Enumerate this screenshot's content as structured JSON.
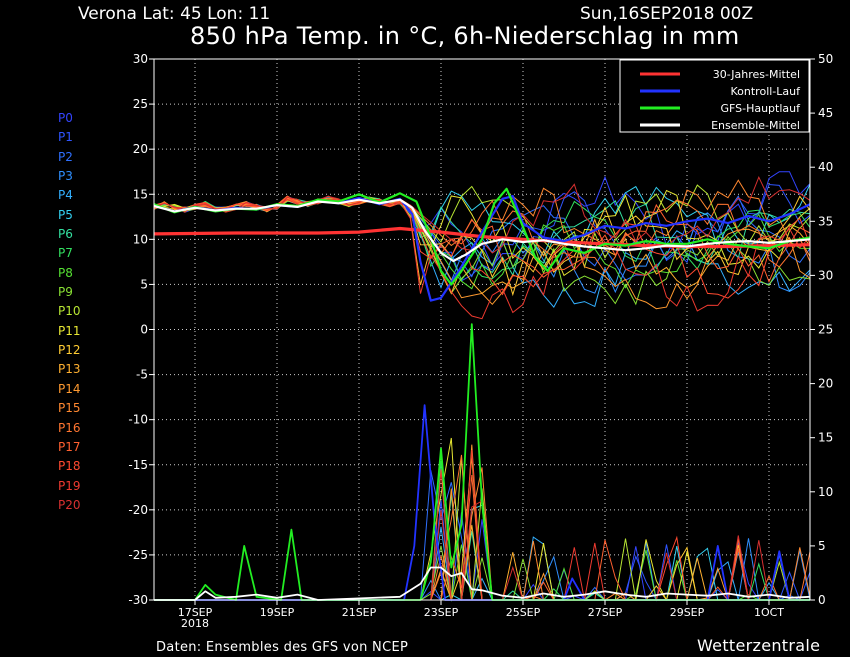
{
  "header": {
    "location": "Verona   Lat: 45 Lon: 11",
    "datetime": "Sun,16SEP2018 00Z",
    "title": "850 hPa Temp. in °C, 6h-Niederschlag in mm"
  },
  "footer": {
    "source": "Daten: Ensembles des GFS von NCEP",
    "brand": "Wetterzentrale"
  },
  "members": [
    {
      "label": "P0",
      "color": "#3344ff"
    },
    {
      "label": "P1",
      "color": "#2f55ff"
    },
    {
      "label": "P2",
      "color": "#2f70ff"
    },
    {
      "label": "P3",
      "color": "#2f8fff"
    },
    {
      "label": "P4",
      "color": "#33b0ff"
    },
    {
      "label": "P5",
      "color": "#33d0f0"
    },
    {
      "label": "P6",
      "color": "#33e0a0"
    },
    {
      "label": "P7",
      "color": "#33e060"
    },
    {
      "label": "P8",
      "color": "#55e033"
    },
    {
      "label": "P9",
      "color": "#88e033"
    },
    {
      "label": "P10",
      "color": "#b8e633"
    },
    {
      "label": "P11",
      "color": "#e8e833"
    },
    {
      "label": "P12",
      "color": "#ffcc33"
    },
    {
      "label": "P13",
      "color": "#ffb030"
    },
    {
      "label": "P14",
      "color": "#ff9a30"
    },
    {
      "label": "P15",
      "color": "#ff8830"
    },
    {
      "label": "P16",
      "color": "#ff7530"
    },
    {
      "label": "P17",
      "color": "#ff6030"
    },
    {
      "label": "P18",
      "color": "#ff4a30"
    },
    {
      "label": "P19",
      "color": "#ee3a30"
    },
    {
      "label": "P20",
      "color": "#d83030"
    }
  ],
  "chart_data": {
    "type": "line",
    "x_ticks": [
      {
        "label": "17SEP",
        "sub": "2018",
        "day": 1
      },
      {
        "label": "19SEP",
        "sub": "",
        "day": 3
      },
      {
        "label": "21SEP",
        "sub": "",
        "day": 5
      },
      {
        "label": "23SEP",
        "sub": "",
        "day": 7
      },
      {
        "label": "25SEP",
        "sub": "",
        "day": 9
      },
      {
        "label": "27SEP",
        "sub": "",
        "day": 11
      },
      {
        "label": "29SEP",
        "sub": "",
        "day": 13
      },
      {
        "label": "1OCT",
        "sub": "",
        "day": 15
      }
    ],
    "xlim": [
      0,
      16
    ],
    "y_left": {
      "label": "850 hPa Temp. (°C)",
      "ticks": [
        30,
        25,
        20,
        15,
        10,
        5,
        0,
        -5,
        -10,
        -15,
        -20,
        -25,
        -30
      ],
      "ylim": [
        -30,
        30
      ]
    },
    "y_right": {
      "label": "6h-Niederschlag (mm)",
      "ticks": [
        50,
        45,
        40,
        35,
        30,
        25,
        20,
        15,
        10,
        5,
        0
      ],
      "ylim": [
        0,
        50
      ]
    },
    "grid": true,
    "legend_position": "top-right",
    "series": [
      {
        "name": "30-Jahres-Mittel",
        "color": "#ff3333",
        "width": 3.2,
        "axis": "left",
        "points": [
          [
            0,
            10.6
          ],
          [
            2,
            10.7
          ],
          [
            4,
            10.7
          ],
          [
            5,
            10.8
          ],
          [
            6,
            11.2
          ],
          [
            7,
            10.8
          ],
          [
            8,
            10.3
          ],
          [
            9,
            10.0
          ],
          [
            10,
            9.7
          ],
          [
            11,
            9.5
          ],
          [
            12,
            9.3
          ],
          [
            13,
            9.2
          ],
          [
            14,
            9.2
          ],
          [
            15,
            9.3
          ],
          [
            16,
            9.4
          ]
        ]
      },
      {
        "name": "Kontroll-Lauf",
        "color": "#2233ff",
        "width": 2.2,
        "axis": "left",
        "points": [
          [
            0,
            13.8
          ],
          [
            0.5,
            13.1
          ],
          [
            1,
            13.6
          ],
          [
            1.5,
            13.2
          ],
          [
            2,
            13.5
          ],
          [
            2.5,
            13.3
          ],
          [
            3,
            13.8
          ],
          [
            3.5,
            13.6
          ],
          [
            4,
            14.3
          ],
          [
            4.5,
            14.0
          ],
          [
            5,
            14.6
          ],
          [
            5.5,
            13.9
          ],
          [
            6,
            14.5
          ],
          [
            6.3,
            12.8
          ],
          [
            6.5,
            7.5
          ],
          [
            6.75,
            3.2
          ],
          [
            7,
            3.5
          ],
          [
            7.25,
            5.2
          ],
          [
            7.5,
            7.0
          ],
          [
            8,
            10.8
          ],
          [
            8.5,
            14.5
          ],
          [
            8.75,
            14.8
          ],
          [
            9,
            11.8
          ],
          [
            9.5,
            10.2
          ],
          [
            10,
            9.8
          ],
          [
            10.5,
            10.5
          ],
          [
            11,
            11.5
          ],
          [
            11.5,
            11.2
          ],
          [
            12,
            11.8
          ],
          [
            12.5,
            11.5
          ],
          [
            13,
            12.0
          ],
          [
            13.5,
            12.3
          ],
          [
            14,
            11.8
          ],
          [
            14.5,
            12.6
          ],
          [
            15,
            12.0
          ],
          [
            15.5,
            12.8
          ],
          [
            16,
            13.9
          ]
        ]
      },
      {
        "name": "GFS-Hauptlauf",
        "color": "#22ee22",
        "width": 2.2,
        "axis": "left",
        "points": [
          [
            0,
            13.9
          ],
          [
            0.5,
            13.0
          ],
          [
            1,
            13.6
          ],
          [
            1.5,
            13.1
          ],
          [
            2,
            13.4
          ],
          [
            2.5,
            13.3
          ],
          [
            3,
            13.9
          ],
          [
            3.5,
            13.7
          ],
          [
            4,
            14.4
          ],
          [
            4.5,
            14.2
          ],
          [
            5,
            15.0
          ],
          [
            5.5,
            14.1
          ],
          [
            6,
            15.1
          ],
          [
            6.4,
            14.2
          ],
          [
            6.75,
            10.2
          ],
          [
            7,
            6.5
          ],
          [
            7.25,
            5.0
          ],
          [
            7.5,
            6.5
          ],
          [
            8,
            10.0
          ],
          [
            8.3,
            14.0
          ],
          [
            8.6,
            15.6
          ],
          [
            8.9,
            12.5
          ],
          [
            9.3,
            8.0
          ],
          [
            9.6,
            6.5
          ],
          [
            10,
            9.0
          ],
          [
            10.5,
            8.5
          ],
          [
            11,
            9.5
          ],
          [
            11.5,
            9.3
          ],
          [
            12,
            9.8
          ],
          [
            12.5,
            9.5
          ],
          [
            13,
            9.5
          ],
          [
            13.5,
            10.0
          ],
          [
            14,
            9.5
          ],
          [
            14.5,
            9.2
          ],
          [
            15,
            9.0
          ],
          [
            15.5,
            9.8
          ],
          [
            16,
            10.2
          ]
        ]
      },
      {
        "name": "Ensemble-Mittel",
        "color": "#ffffff",
        "width": 2.2,
        "axis": "left",
        "points": [
          [
            0,
            13.7
          ],
          [
            0.5,
            13.1
          ],
          [
            1,
            13.5
          ],
          [
            1.5,
            13.2
          ],
          [
            2,
            13.4
          ],
          [
            2.5,
            13.4
          ],
          [
            3,
            13.8
          ],
          [
            3.5,
            13.6
          ],
          [
            4,
            14.2
          ],
          [
            4.5,
            14.0
          ],
          [
            5,
            14.4
          ],
          [
            5.5,
            14.0
          ],
          [
            6,
            14.4
          ],
          [
            6.3,
            13.5
          ],
          [
            6.6,
            11.0
          ],
          [
            7,
            8.5
          ],
          [
            7.3,
            7.6
          ],
          [
            7.6,
            8.3
          ],
          [
            8,
            9.5
          ],
          [
            8.5,
            10.0
          ],
          [
            9,
            9.7
          ],
          [
            9.5,
            9.9
          ],
          [
            10,
            9.5
          ],
          [
            10.5,
            9.2
          ],
          [
            11,
            9.0
          ],
          [
            11.5,
            8.8
          ],
          [
            12,
            9.0
          ],
          [
            12.5,
            9.3
          ],
          [
            13,
            9.2
          ],
          [
            13.5,
            9.5
          ],
          [
            14,
            9.7
          ],
          [
            14.5,
            9.8
          ],
          [
            15,
            9.6
          ],
          [
            15.5,
            9.8
          ],
          [
            16,
            10.0
          ]
        ]
      },
      {
        "name": "Kontroll-Lauf",
        "color": "#2233ff",
        "width": 1.8,
        "axis": "right",
        "points": [
          [
            0,
            0
          ],
          [
            6.1,
            0
          ],
          [
            6.35,
            5
          ],
          [
            6.6,
            18
          ],
          [
            6.85,
            7
          ],
          [
            7.1,
            0
          ],
          [
            9,
            0
          ],
          [
            10,
            0
          ],
          [
            10.2,
            2
          ],
          [
            10.5,
            0
          ],
          [
            13.5,
            0
          ],
          [
            13.75,
            5
          ],
          [
            14,
            0
          ],
          [
            15,
            0
          ],
          [
            15.25,
            4.5
          ],
          [
            15.5,
            0
          ],
          [
            16,
            0
          ]
        ]
      },
      {
        "name": "GFS-Hauptlauf",
        "color": "#22ee22",
        "width": 1.8,
        "axis": "right",
        "points": [
          [
            0,
            0
          ],
          [
            1,
            0
          ],
          [
            1.25,
            1.4
          ],
          [
            1.5,
            0.5
          ],
          [
            2,
            0
          ],
          [
            2.2,
            5
          ],
          [
            2.5,
            0.3
          ],
          [
            3.1,
            0
          ],
          [
            3.35,
            6.5
          ],
          [
            3.6,
            0
          ],
          [
            6.5,
            0
          ],
          [
            6.75,
            3.5
          ],
          [
            7,
            14
          ],
          [
            7.25,
            3
          ],
          [
            7.5,
            7
          ],
          [
            7.75,
            25.5
          ],
          [
            8,
            9
          ],
          [
            8.25,
            0
          ],
          [
            16,
            0
          ]
        ]
      },
      {
        "name": "Ensemble-Mittel",
        "color": "#ffffff",
        "width": 1.8,
        "axis": "right",
        "points": [
          [
            0,
            0
          ],
          [
            1,
            0
          ],
          [
            1.25,
            0.8
          ],
          [
            1.5,
            0.2
          ],
          [
            2,
            0.3
          ],
          [
            2.5,
            0.5
          ],
          [
            3,
            0.2
          ],
          [
            3.5,
            0.5
          ],
          [
            4,
            0
          ],
          [
            6,
            0.3
          ],
          [
            6.5,
            1.5
          ],
          [
            6.75,
            3.0
          ],
          [
            7,
            3.0
          ],
          [
            7.25,
            2.2
          ],
          [
            7.5,
            2.5
          ],
          [
            7.75,
            1.0
          ],
          [
            8,
            0.9
          ],
          [
            8.5,
            0.4
          ],
          [
            9,
            0.2
          ],
          [
            9.5,
            0.6
          ],
          [
            10,
            0.3
          ],
          [
            10.5,
            0.5
          ],
          [
            11,
            0.8
          ],
          [
            11.5,
            0.5
          ],
          [
            12,
            0.3
          ],
          [
            12.5,
            0.6
          ],
          [
            13,
            0.5
          ],
          [
            13.5,
            0.4
          ],
          [
            14,
            0.6
          ],
          [
            14.5,
            0.3
          ],
          [
            15,
            0.5
          ],
          [
            15.5,
            0.2
          ],
          [
            16,
            0.3
          ]
        ]
      }
    ]
  }
}
